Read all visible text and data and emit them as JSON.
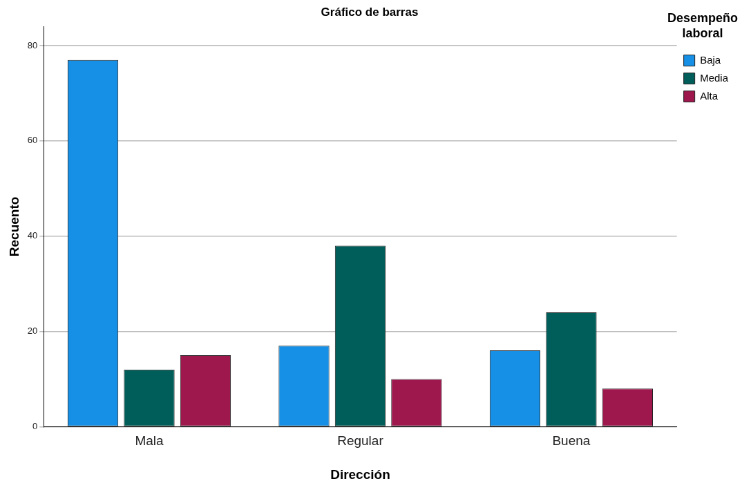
{
  "chart_data": {
    "type": "bar",
    "title": "Gráfico de barras",
    "xlabel": "Dirección",
    "ylabel": "Recuento",
    "legend_title": "Desempeño laboral",
    "categories": [
      "Mala",
      "Regular",
      "Buena"
    ],
    "series": [
      {
        "name": "Baja",
        "color": "#1590e6",
        "values": [
          77,
          17,
          16
        ]
      },
      {
        "name": "Media",
        "color": "#005e5a",
        "values": [
          12,
          38,
          24
        ]
      },
      {
        "name": "Alta",
        "color": "#9e184e",
        "values": [
          15,
          10,
          8
        ]
      }
    ],
    "ylim": [
      0,
      84
    ],
    "yticks": [
      0,
      20,
      40,
      60,
      80
    ],
    "grid": "y",
    "legend": "top right"
  }
}
